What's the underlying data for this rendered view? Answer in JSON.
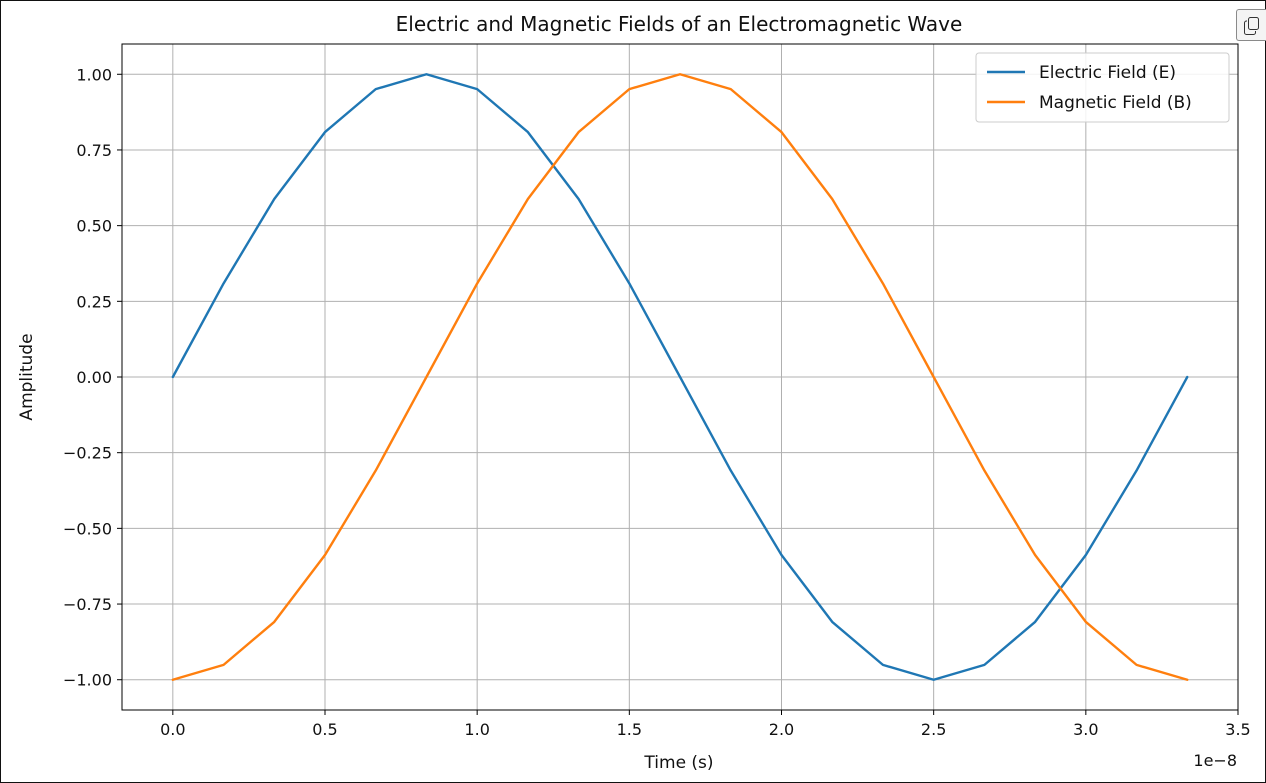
{
  "toolbar": {
    "copy_icon": "copy-icon"
  },
  "chart_data": {
    "type": "line",
    "title": "Electric and Magnetic Fields of an Electromagnetic Wave",
    "xlabel": "Time (s)",
    "ylabel": "Amplitude",
    "x_scale_label": "1e−8",
    "xlim": [
      -0.167,
      3.5
    ],
    "ylim": [
      -1.1,
      1.1
    ],
    "xticks": [
      0.0,
      0.5,
      1.0,
      1.5,
      2.0,
      2.5,
      3.0,
      3.5
    ],
    "xtick_labels": [
      "0.0",
      "0.5",
      "1.0",
      "1.5",
      "2.0",
      "2.5",
      "3.0",
      "3.5"
    ],
    "yticks": [
      -1.0,
      -0.75,
      -0.5,
      -0.25,
      0.0,
      0.25,
      0.5,
      0.75,
      1.0
    ],
    "ytick_labels": [
      "−1.00",
      "−0.75",
      "−0.50",
      "−0.25",
      "0.00",
      "0.25",
      "0.50",
      "0.75",
      "1.00"
    ],
    "grid": true,
    "legend_position": "top-right",
    "series": [
      {
        "name": "Electric Field (E)",
        "color": "#1f77b4",
        "x": [
          0,
          0.1667,
          0.3333,
          0.5,
          0.6667,
          0.8333,
          1.0,
          1.1667,
          1.3333,
          1.5,
          1.6667,
          1.8333,
          2.0,
          2.1667,
          2.3333,
          2.5,
          2.6667,
          2.8333,
          3.0,
          3.1667,
          3.3333
        ],
        "y": [
          0,
          0.309,
          0.588,
          0.809,
          0.951,
          1.0,
          0.951,
          0.809,
          0.588,
          0.309,
          0,
          -0.309,
          -0.588,
          -0.809,
          -0.951,
          -1.0,
          -0.951,
          -0.809,
          -0.588,
          -0.309,
          0
        ]
      },
      {
        "name": "Magnetic Field (B)",
        "color": "#ff7f0e",
        "x": [
          0,
          0.1667,
          0.3333,
          0.5,
          0.6667,
          0.8333,
          1.0,
          1.1667,
          1.3333,
          1.5,
          1.6667,
          1.8333,
          2.0,
          2.1667,
          2.3333,
          2.5,
          2.6667,
          2.8333,
          3.0,
          3.1667,
          3.3333
        ],
        "y": [
          -1.0,
          -0.951,
          -0.809,
          -0.588,
          -0.309,
          0,
          0.309,
          0.588,
          0.809,
          0.951,
          1.0,
          0.951,
          0.809,
          0.588,
          0.309,
          0,
          -0.309,
          -0.588,
          -0.809,
          -0.951,
          -1.0
        ]
      }
    ]
  }
}
